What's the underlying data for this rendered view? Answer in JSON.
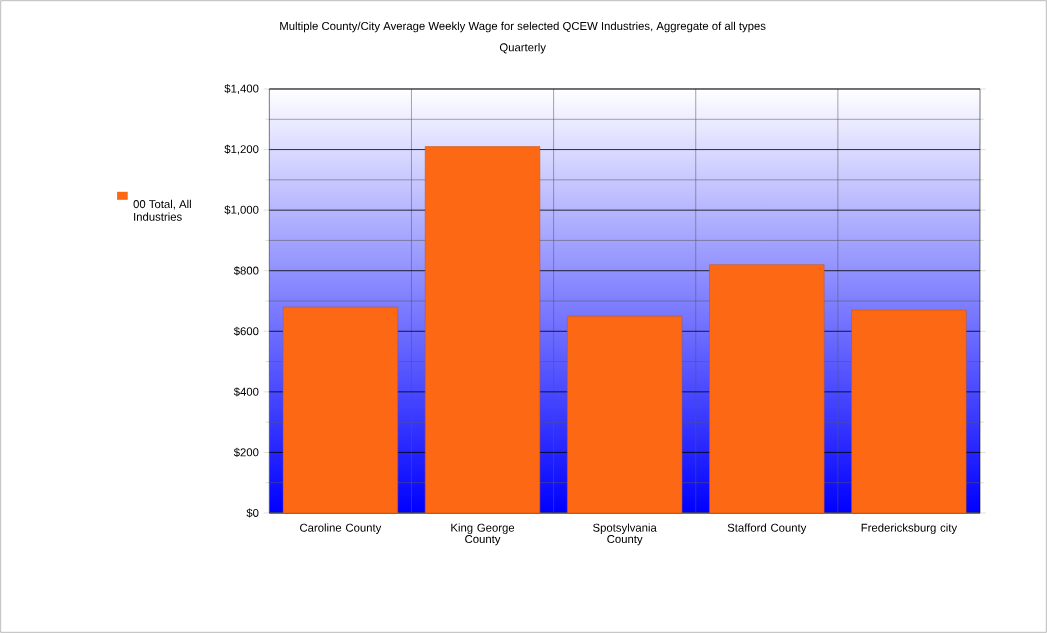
{
  "chart_data": {
    "type": "bar",
    "title": "Multiple County/City Average Weekly Wage for selected QCEW Industries, Aggregate of all types",
    "subtitle": "Quarterly",
    "categories": [
      "Caroline County",
      "King George County",
      "Spotsylvania County",
      "Stafford County",
      "Fredericksburg city"
    ],
    "series": [
      {
        "name": "00 Total, All Industries",
        "color": "#fd6814",
        "values": [
          680,
          1210,
          650,
          820,
          670
        ]
      }
    ],
    "ylim": [
      0,
      1400
    ],
    "yticks": [
      {
        "value": 0,
        "label": "$0"
      },
      {
        "value": 200,
        "label": "$200"
      },
      {
        "value": 400,
        "label": "$400"
      },
      {
        "value": 600,
        "label": "$600"
      },
      {
        "value": 800,
        "label": "$800"
      },
      {
        "value": 1000,
        "label": "$1,000"
      },
      {
        "value": 1200,
        "label": "$1,200"
      },
      {
        "value": 1400,
        "label": "$1,400"
      }
    ],
    "grid": true,
    "legend": "left"
  }
}
